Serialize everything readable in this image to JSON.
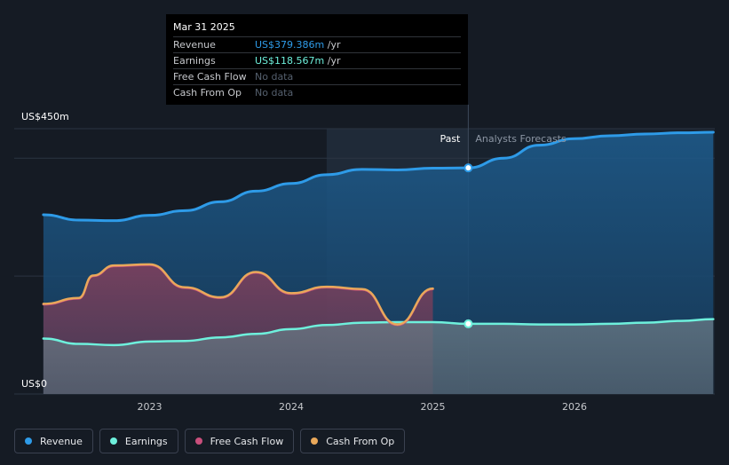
{
  "tooltip": {
    "date": "Mar 31 2025",
    "rows": [
      {
        "label": "Revenue",
        "value": "US$379.386m",
        "unit": " /yr",
        "color": "#2e9be8"
      },
      {
        "label": "Earnings",
        "value": "US$118.567m",
        "unit": " /yr",
        "color": "#6ef0dc"
      },
      {
        "label": "Free Cash Flow",
        "value": "No data",
        "unit": "",
        "color": "#55606e"
      },
      {
        "label": "Cash From Op",
        "value": "No data",
        "unit": "",
        "color": "#55606e"
      }
    ]
  },
  "legend": [
    {
      "label": "Revenue",
      "color": "#2e9be8"
    },
    {
      "label": "Earnings",
      "color": "#6ef0dc"
    },
    {
      "label": "Free Cash Flow",
      "color": "#c94f7c"
    },
    {
      "label": "Cash From Op",
      "color": "#e9a85a"
    }
  ],
  "chart_data": {
    "type": "area",
    "y_top_label": "US$450m",
    "y_bottom_label": "US$0",
    "ylim": [
      0,
      450
    ],
    "xlim": [
      2022.25,
      2026.98
    ],
    "x_ticks": [
      2023,
      2024,
      2025,
      2026
    ],
    "past_label": "Past",
    "forecast_label": "Analysts Forecasts",
    "split_x": 2025.25,
    "highlight_start_x": 2024.25,
    "grid": true,
    "series": [
      {
        "name": "Revenue",
        "color": "#2e9be8",
        "points": [
          [
            2022.25,
            304
          ],
          [
            2022.5,
            295
          ],
          [
            2022.75,
            294
          ],
          [
            2023,
            303
          ],
          [
            2023.25,
            311
          ],
          [
            2023.5,
            326
          ],
          [
            2023.75,
            344
          ],
          [
            2024,
            357
          ],
          [
            2024.25,
            372
          ],
          [
            2024.5,
            381
          ],
          [
            2024.75,
            380
          ],
          [
            2025,
            383
          ],
          [
            2025.25,
            383.5
          ],
          [
            2025.5,
            400
          ],
          [
            2025.75,
            422
          ],
          [
            2026,
            433
          ],
          [
            2026.25,
            438
          ],
          [
            2026.5,
            441
          ],
          [
            2026.75,
            443
          ],
          [
            2026.98,
            444
          ]
        ]
      },
      {
        "name": "Earnings",
        "color": "#6ef0dc",
        "points": [
          [
            2022.25,
            94
          ],
          [
            2022.5,
            85
          ],
          [
            2022.75,
            83
          ],
          [
            2023,
            89
          ],
          [
            2023.25,
            90
          ],
          [
            2023.5,
            96
          ],
          [
            2023.75,
            102
          ],
          [
            2024,
            110
          ],
          [
            2024.25,
            117
          ],
          [
            2024.5,
            121
          ],
          [
            2024.75,
            122
          ],
          [
            2025,
            122
          ],
          [
            2025.25,
            119
          ],
          [
            2025.5,
            119
          ],
          [
            2025.75,
            118
          ],
          [
            2026,
            118
          ],
          [
            2026.25,
            119
          ],
          [
            2026.5,
            121
          ],
          [
            2026.75,
            124
          ],
          [
            2026.98,
            127
          ]
        ]
      },
      {
        "name": "Free Cash Flow",
        "color": "#c94f7c",
        "points": [
          [
            2022.25,
            152
          ],
          [
            2022.5,
            162
          ],
          [
            2022.6,
            200
          ],
          [
            2022.75,
            217
          ],
          [
            2023,
            219
          ],
          [
            2023.25,
            180
          ],
          [
            2023.5,
            163
          ],
          [
            2023.75,
            206
          ],
          [
            2024,
            170
          ],
          [
            2024.25,
            181
          ],
          [
            2024.5,
            177
          ],
          [
            2024.75,
            117
          ],
          [
            2025,
            178
          ]
        ]
      },
      {
        "name": "Cash From Op",
        "color": "#e9a85a",
        "points": [
          [
            2022.25,
            153
          ],
          [
            2022.5,
            163
          ],
          [
            2022.6,
            201
          ],
          [
            2022.75,
            218
          ],
          [
            2023,
            220
          ],
          [
            2023.25,
            181
          ],
          [
            2023.5,
            164
          ],
          [
            2023.75,
            207
          ],
          [
            2024,
            171
          ],
          [
            2024.25,
            182
          ],
          [
            2024.5,
            178
          ],
          [
            2024.75,
            118
          ],
          [
            2025,
            179
          ]
        ]
      }
    ],
    "markers": [
      {
        "series": "Revenue",
        "x": 2025.25,
        "y": 383.5
      },
      {
        "series": "Earnings",
        "x": 2025.25,
        "y": 119
      }
    ]
  }
}
